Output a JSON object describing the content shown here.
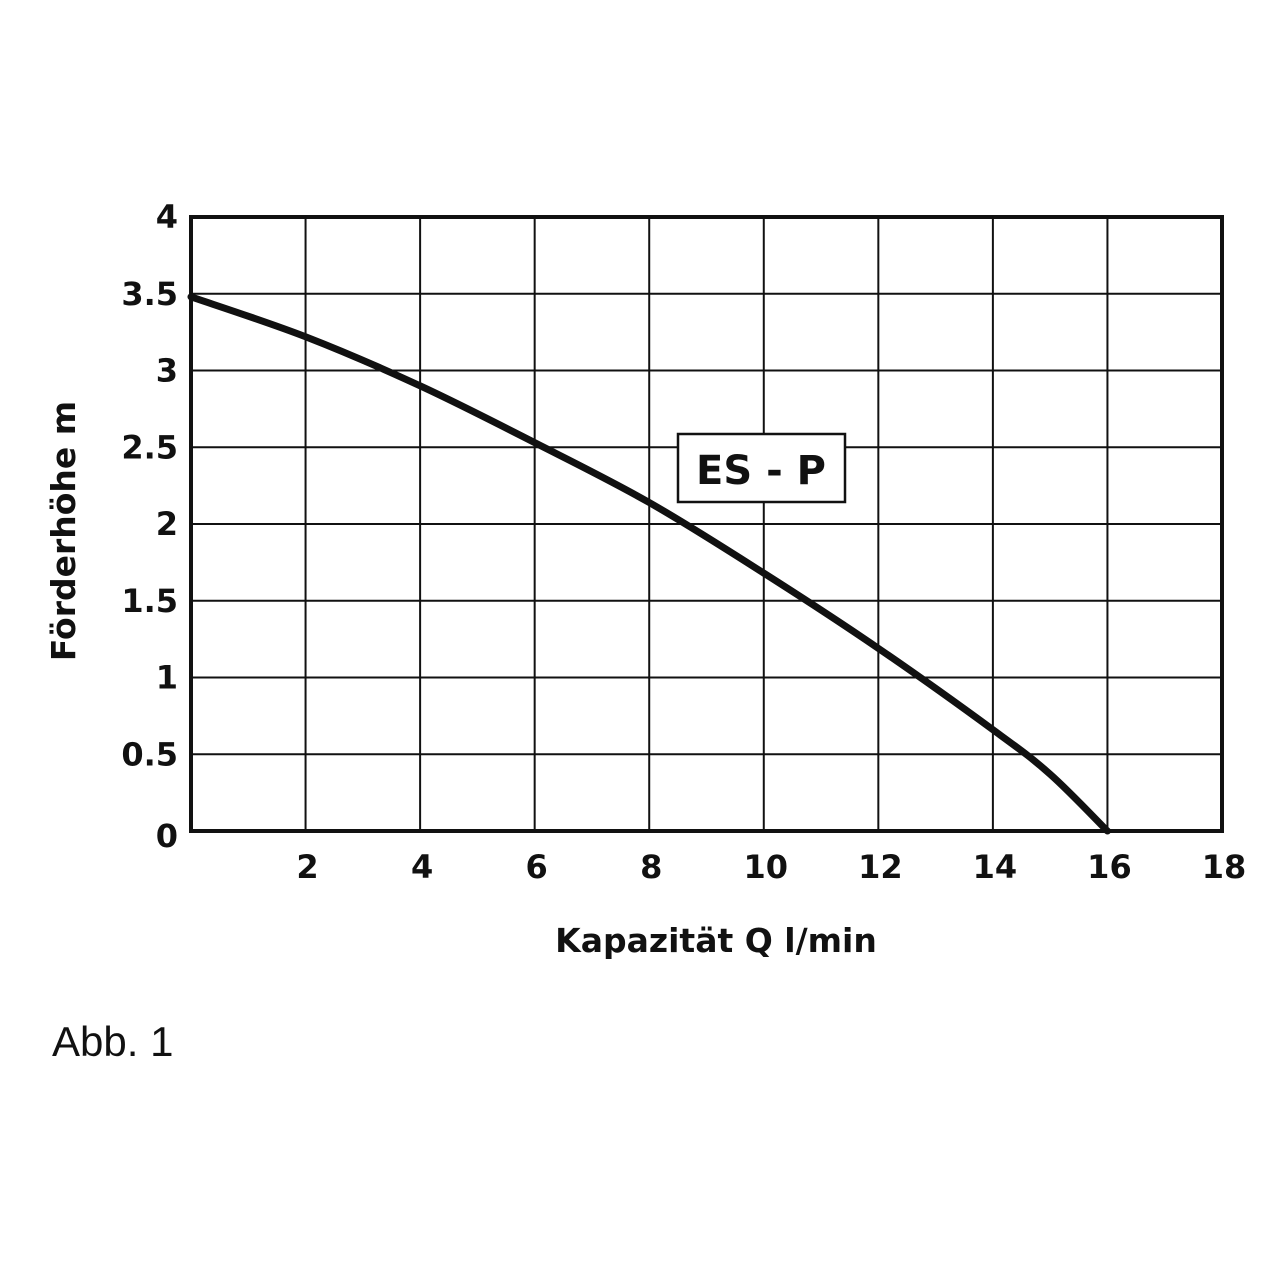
{
  "chart_data": {
    "type": "line",
    "xlabel": "Kapazität Q l/min",
    "ylabel": "Förderhöhe m",
    "xlim": [
      0,
      18
    ],
    "ylim": [
      0,
      4
    ],
    "x_ticks": [
      2,
      4,
      6,
      8,
      10,
      12,
      14,
      16,
      18
    ],
    "x_tick_labels": [
      "2",
      "4",
      "6",
      "8",
      "10",
      "12",
      "14",
      "16",
      "18"
    ],
    "y_ticks": [
      0,
      0.5,
      1,
      1.5,
      2,
      2.5,
      3,
      3.5,
      4
    ],
    "y_tick_labels": [
      "0",
      "0.5",
      "1",
      "1.5",
      "2",
      "2.5",
      "3",
      "3.5",
      "4"
    ],
    "grid": true,
    "series": [
      {
        "name": "ES - P",
        "x": [
          0,
          2,
          4,
          6,
          8,
          10,
          12,
          14,
          15,
          16
        ],
        "y": [
          3.48,
          3.22,
          2.9,
          2.53,
          2.14,
          1.68,
          1.19,
          0.66,
          0.37,
          0.0
        ]
      }
    ],
    "colors": {
      "line": "#111111",
      "grid": "#111111"
    }
  },
  "caption": "Abb. 1"
}
